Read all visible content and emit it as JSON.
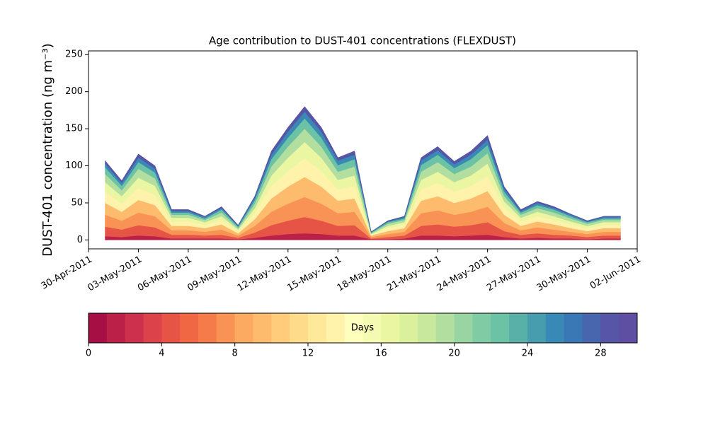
{
  "chart_data": {
    "type": "stacked_area",
    "title": "Age contribution to DUST-401 concentrations (FLEXDUST)",
    "ylabel": "DUST-401 concentration (ng m⁻³)",
    "x": [
      "2011-05-01",
      "2011-05-02",
      "2011-05-03",
      "2011-05-04",
      "2011-05-05",
      "2011-05-06",
      "2011-05-07",
      "2011-05-08",
      "2011-05-09",
      "2011-05-10",
      "2011-05-11",
      "2011-05-12",
      "2011-05-13",
      "2011-05-14",
      "2011-05-15",
      "2011-05-16",
      "2011-05-17",
      "2011-05-18",
      "2011-05-19",
      "2011-05-20",
      "2011-05-21",
      "2011-05-22",
      "2011-05-23",
      "2011-05-24",
      "2011-05-25",
      "2011-05-26",
      "2011-05-27",
      "2011-05-28",
      "2011-05-29",
      "2011-05-30",
      "2011-05-31",
      "2011-06-01"
    ],
    "series": [
      {
        "color": "#bb2148",
        "values": [
          5,
          4,
          6,
          5,
          2,
          2,
          2,
          2,
          1,
          3,
          6,
          8,
          9,
          8,
          6,
          6,
          1,
          1,
          2,
          6,
          6,
          5,
          6,
          7,
          4,
          2,
          3,
          2,
          2,
          1,
          2,
          2
        ]
      },
      {
        "color": "#e65446",
        "values": [
          13,
          10,
          14,
          12,
          5,
          5,
          4,
          5,
          2,
          7,
          14,
          18,
          22,
          18,
          13,
          14,
          1,
          3,
          4,
          13,
          15,
          13,
          14,
          17,
          8,
          5,
          6,
          5,
          4,
          3,
          4,
          4
        ]
      },
      {
        "color": "#f99355",
        "values": [
          16,
          12,
          17,
          15,
          6,
          6,
          5,
          7,
          3,
          9,
          18,
          23,
          27,
          23,
          17,
          18,
          2,
          4,
          5,
          17,
          19,
          16,
          18,
          21,
          11,
          6,
          8,
          7,
          5,
          4,
          5,
          5
        ]
      },
      {
        "color": "#fdbc6d",
        "values": [
          16,
          12,
          17,
          15,
          6,
          6,
          5,
          7,
          3,
          9,
          18,
          23,
          27,
          23,
          17,
          18,
          2,
          4,
          5,
          17,
          19,
          16,
          18,
          21,
          11,
          6,
          8,
          7,
          5,
          4,
          5,
          5
        ]
      },
      {
        "color": "#fff3ab",
        "values": [
          15,
          11,
          16,
          14,
          6,
          6,
          4,
          6,
          3,
          8,
          17,
          21,
          25,
          21,
          15,
          17,
          1,
          4,
          4,
          15,
          18,
          15,
          17,
          20,
          10,
          6,
          7,
          6,
          5,
          4,
          4,
          4
        ]
      },
      {
        "color": "#eaf6a2",
        "values": [
          13,
          10,
          14,
          12,
          5,
          5,
          4,
          5,
          2,
          7,
          14,
          18,
          22,
          18,
          13,
          14,
          1,
          3,
          4,
          13,
          15,
          13,
          14,
          17,
          8,
          5,
          6,
          5,
          4,
          3,
          4,
          4
        ]
      },
      {
        "color": "#b2de9f",
        "values": [
          11,
          8,
          12,
          10,
          4,
          4,
          3,
          5,
          2,
          6,
          12,
          15,
          18,
          15,
          11,
          12,
          1,
          3,
          3,
          11,
          13,
          11,
          12,
          14,
          7,
          4,
          5,
          5,
          4,
          3,
          3,
          3
        ]
      },
      {
        "color": "#6bc2a4",
        "values": [
          9,
          6,
          9,
          8,
          3,
          3,
          2,
          4,
          2,
          5,
          10,
          12,
          14,
          12,
          9,
          10,
          1,
          2,
          2,
          9,
          10,
          8,
          10,
          11,
          6,
          3,
          4,
          4,
          3,
          2,
          2,
          2
        ]
      },
      {
        "color": "#3889b5",
        "values": [
          5,
          4,
          6,
          5,
          2,
          2,
          2,
          2,
          1,
          3,
          6,
          8,
          9,
          8,
          6,
          6,
          1,
          1,
          2,
          6,
          6,
          5,
          6,
          7,
          4,
          2,
          3,
          2,
          2,
          1,
          2,
          2
        ]
      },
      {
        "color": "#5655a6",
        "values": [
          4,
          3,
          5,
          4,
          2,
          2,
          1,
          2,
          1,
          2,
          5,
          6,
          7,
          6,
          4,
          5,
          0,
          1,
          1,
          4,
          5,
          4,
          5,
          6,
          3,
          2,
          2,
          2,
          1,
          1,
          1,
          1
        ]
      }
    ],
    "xlim": [
      "2011-04-30",
      "2011-06-02"
    ],
    "xticks": [
      {
        "value": "2011-04-30",
        "label": "30-Apr-2011"
      },
      {
        "value": "2011-05-03",
        "label": "03-May-2011"
      },
      {
        "value": "2011-05-06",
        "label": "06-May-2011"
      },
      {
        "value": "2011-05-09",
        "label": "09-May-2011"
      },
      {
        "value": "2011-05-12",
        "label": "12-May-2011"
      },
      {
        "value": "2011-05-15",
        "label": "15-May-2011"
      },
      {
        "value": "2011-05-18",
        "label": "18-May-2011"
      },
      {
        "value": "2011-05-21",
        "label": "21-May-2011"
      },
      {
        "value": "2011-05-24",
        "label": "24-May-2011"
      },
      {
        "value": "2011-05-27",
        "label": "27-May-2011"
      },
      {
        "value": "2011-05-30",
        "label": "30-May-2011"
      },
      {
        "value": "2011-06-02",
        "label": "02-Jun-2011"
      }
    ],
    "ylim": [
      -12,
      255
    ],
    "yticks": [
      0,
      50,
      100,
      150,
      200,
      250
    ],
    "colorbar": {
      "label": "Days",
      "lim": [
        0,
        30
      ],
      "ticks": [
        0,
        4,
        8,
        12,
        16,
        20,
        24,
        28
      ],
      "colors": [
        "#a50f43",
        "#bb2148",
        "#cd304c",
        "#db424a",
        "#e65446",
        "#f06744",
        "#f57c4a",
        "#f99355",
        "#fca961",
        "#fdbc6d",
        "#fecc7b",
        "#fedb8a",
        "#fee89a",
        "#fff3ab",
        "#fefebd",
        "#f5fab2",
        "#eaf6a2",
        "#dbf09c",
        "#c7e89d",
        "#b2de9f",
        "#99d5a3",
        "#80cba4",
        "#6bc2a4",
        "#58b0a8",
        "#479dad",
        "#3889b5",
        "#3a77b5",
        "#4766ad",
        "#5655a6",
        "#5e4fa2"
      ]
    }
  }
}
